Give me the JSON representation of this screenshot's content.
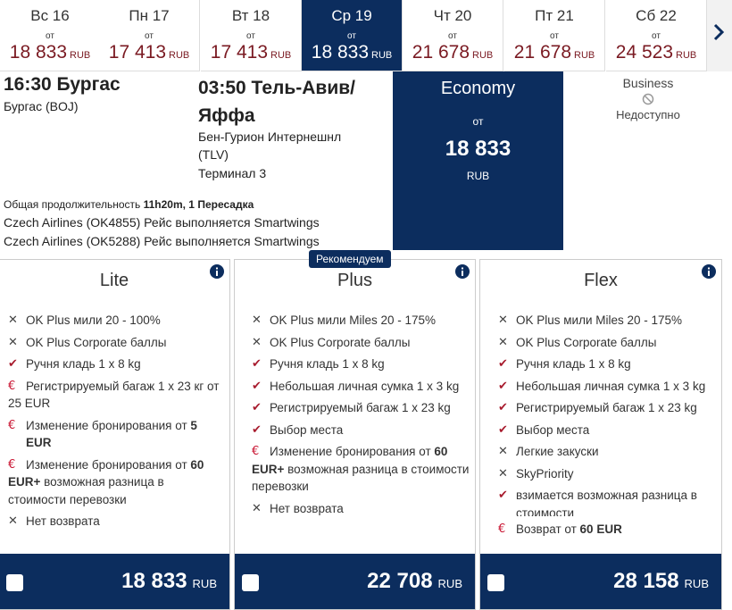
{
  "dates": [
    {
      "day": "Вс 16",
      "from": "от",
      "price": "18 833",
      "currency": "RUB"
    },
    {
      "day": "Пн 17",
      "from": "от",
      "price": "17 413",
      "currency": "RUB"
    },
    {
      "day": "Вт 18",
      "from": "от",
      "price": "17 413",
      "currency": "RUB"
    },
    {
      "day": "Ср 19",
      "from": "от",
      "price": "18 833",
      "currency": "RUB"
    },
    {
      "day": "Чт 20",
      "from": "от",
      "price": "21 678",
      "currency": "RUB"
    },
    {
      "day": "Пт 21",
      "from": "от",
      "price": "21 678",
      "currency": "RUB"
    },
    {
      "day": "Сб 22",
      "from": "от",
      "price": "24 523",
      "currency": "RUB"
    }
  ],
  "flight": {
    "departure": "16:30 Бургас",
    "departure_airport": "Бургас (BOJ)",
    "arrival": "03:50 Тель-Авив/ Яффа",
    "arrival_airport": "Бен-Гурион Интернешнл (TLV)",
    "terminal": "Терминал 3",
    "duration_label": "Общая продолжительность",
    "duration": "11h20m, 1 Пересадка",
    "segments": [
      "Czech Airlines (OK4855) Рейс выполняется Smartwings",
      "Czech Airlines (OK5288) Рейс выполняется Smartwings"
    ]
  },
  "economy": {
    "title": "Economy",
    "from": "от",
    "price": "18 833",
    "currency": "RUB"
  },
  "business": {
    "title": "Business",
    "status": "Недоступно"
  },
  "fares": [
    {
      "name": "Lite",
      "features": [
        "OK Plus мили 20 - 100%",
        "OK Plus Corporate баллы",
        "Ручня кладь 1 x 8 kg",
        {
          "text": "Регистрируемый багаж 1 x 23 кг от",
          "bold": "25 EUR"
        },
        {
          "text": "Изменение бронирования от",
          "bold": "5 EUR"
        },
        {
          "text": "Изменение бронирования от",
          "bold": "60 EUR+",
          "rest": "возможная разница в стоимости перевозки"
        },
        "Нет возврата"
      ],
      "price": "18 833",
      "currency": "RUB"
    },
    {
      "name": "Plus",
      "badge": "Рекомендуем",
      "features": [
        "OK Plus мили Miles 20 - 175%",
        "OK Plus Corporate баллы",
        "Ручня кладь 1 x 8 kg",
        "Небольшая личная сумка 1 x 3 kg",
        "Регистрируемый багаж 1 x 23 kg",
        "Выбор места",
        {
          "text": "Изменение бронирования от",
          "bold": "60 EUR+",
          "rest": "возможная разница в стоимости перевозки"
        },
        "Нет возврата"
      ],
      "price": "22 708",
      "currency": "RUB"
    },
    {
      "name": "Flex",
      "features": [
        "OK Plus мили Miles 20 - 175%",
        "OK Plus Corporate баллы",
        "Ручня кладь 1 x 8 kg",
        "Небольшая личная сумка 1 x 3 kg",
        "Регистрируемый багаж 1 x 23 kg",
        "Выбор места",
        "Легкие закуски",
        "SkyPriority",
        "взимается возможная разница в стоимости"
      ],
      "refund": {
        "text": "Возврат от",
        "bold": "60 EUR"
      },
      "price": "28 158",
      "currency": "RUB"
    }
  ]
}
